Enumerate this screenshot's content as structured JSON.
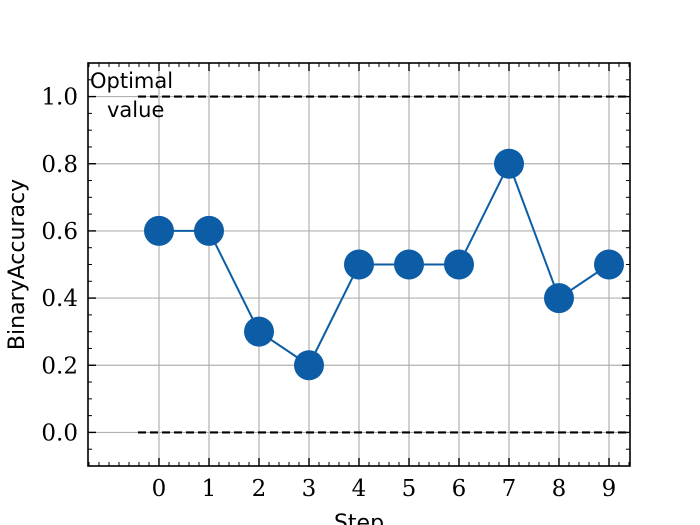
{
  "chart_data": {
    "type": "line",
    "title": "",
    "xlabel": "Step",
    "ylabel": "BinaryAccuracy",
    "x": [
      0,
      1,
      2,
      3,
      4,
      5,
      6,
      7,
      8,
      9
    ],
    "series": [
      {
        "values": [
          0.6,
          0.6,
          0.3,
          0.2,
          0.5,
          0.5,
          0.5,
          0.8,
          0.4,
          0.5
        ],
        "color": "#0C5DA5",
        "marker": "circle"
      }
    ],
    "reference_lines": [
      {
        "y": 1.0,
        "style": "dashed",
        "color": "#000000"
      },
      {
        "y": 0.0,
        "style": "dashed",
        "color": "#000000"
      }
    ],
    "annotations": [
      {
        "text_lines": [
          "Optimal",
          "value"
        ],
        "x": -1.4,
        "y": 1.0
      }
    ],
    "xticks": [
      "0",
      "1",
      "2",
      "3",
      "4",
      "5",
      "6",
      "7",
      "8",
      "9"
    ],
    "yticks": [
      "0.0",
      "0.2",
      "0.4",
      "0.6",
      "0.8",
      "1.0"
    ],
    "xlim": [
      -1.42,
      9.42
    ],
    "ylim": [
      -0.1,
      1.1
    ],
    "grid": true
  }
}
